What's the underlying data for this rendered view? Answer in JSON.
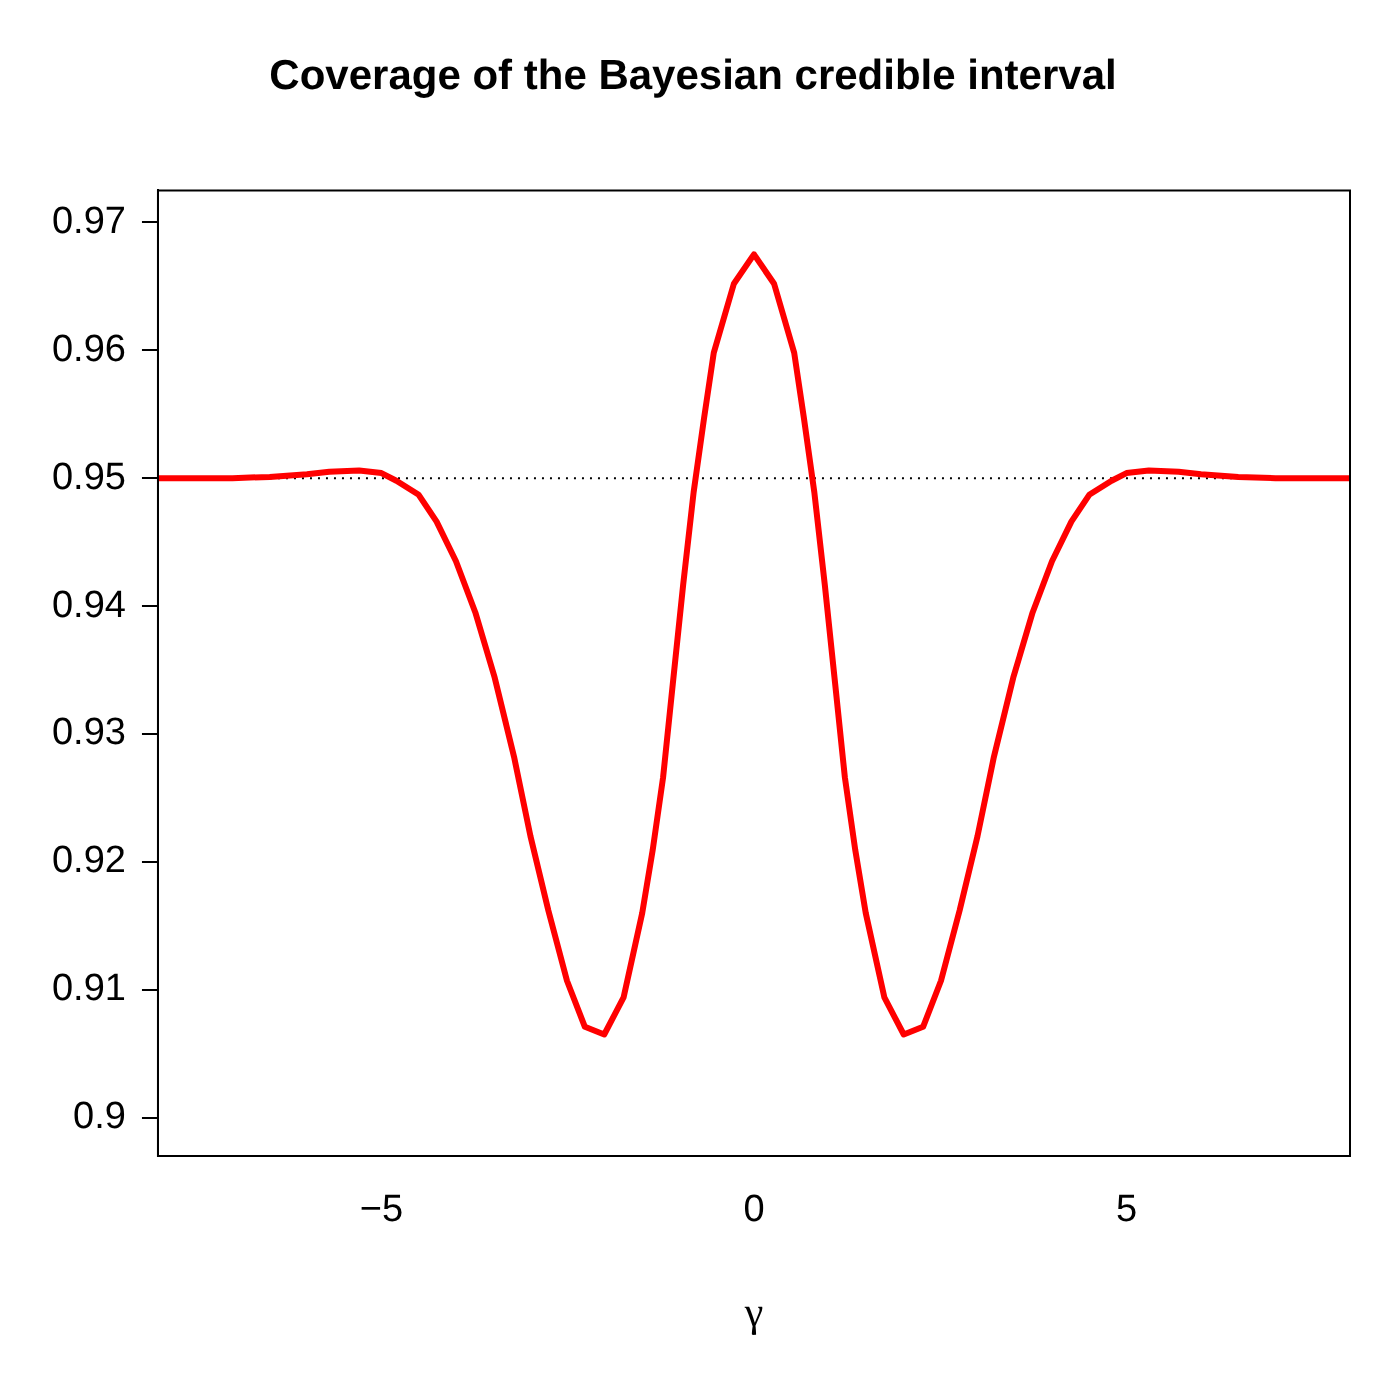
{
  "chart_data": {
    "type": "line",
    "title": "Coverage of the Bayesian credible interval",
    "xlabel": "γ",
    "x": [
      -8,
      -7,
      -6.5,
      -6,
      -5.7,
      -5.3,
      -5,
      -4.8,
      -4.5,
      -4.26,
      -4,
      -3.74,
      -3.48,
      -3.22,
      -3,
      -2.76,
      -2.51,
      -2.27,
      -2.01,
      -1.75,
      -1.5,
      -1.36,
      -1.22,
      -1.09,
      -0.95,
      -0.81,
      -0.67,
      -0.54,
      -0.27,
      0,
      0.27,
      0.54,
      0.67,
      0.81,
      0.95,
      1.09,
      1.22,
      1.36,
      1.5,
      1.75,
      2.01,
      2.27,
      2.51,
      2.76,
      3,
      3.22,
      3.48,
      3.74,
      4,
      4.26,
      4.5,
      4.8,
      5,
      5.3,
      5.7,
      6,
      6.5,
      7,
      8
    ],
    "series": [
      {
        "color": "#ff0000",
        "values": [
          0.95,
          0.95,
          0.9501,
          0.9503,
          0.9505,
          0.9506,
          0.9504,
          0.9498,
          0.9487,
          0.9466,
          0.9435,
          0.9395,
          0.9344,
          0.9282,
          0.922,
          0.9162,
          0.9107,
          0.9071,
          0.9065,
          0.9094,
          0.916,
          0.9209,
          0.9266,
          0.9339,
          0.9417,
          0.9489,
          0.9547,
          0.9598,
          0.9652,
          0.9675,
          0.9652,
          0.9598,
          0.9547,
          0.9489,
          0.9417,
          0.9339,
          0.9266,
          0.9209,
          0.916,
          0.9094,
          0.9065,
          0.9071,
          0.9107,
          0.9162,
          0.922,
          0.9282,
          0.9344,
          0.9395,
          0.9435,
          0.9466,
          0.9487,
          0.9498,
          0.9504,
          0.9506,
          0.9505,
          0.9503,
          0.9501,
          0.95,
          0.95
        ]
      }
    ],
    "xlim": [
      -8,
      8
    ],
    "ylim": [
      0.897,
      0.9725
    ],
    "xticks": [
      {
        "value": -5,
        "label": "−5"
      },
      0,
      5
    ],
    "yticks": [
      0.9,
      0.91,
      0.92,
      0.93,
      0.94,
      0.95,
      0.96,
      0.97
    ],
    "ref_lines": [
      {
        "axis": "y",
        "value": 0.95,
        "color": "#000000",
        "line_style": "dotted"
      }
    ],
    "grid": false,
    "legend": false,
    "marker": "none",
    "line_style": "solid"
  }
}
